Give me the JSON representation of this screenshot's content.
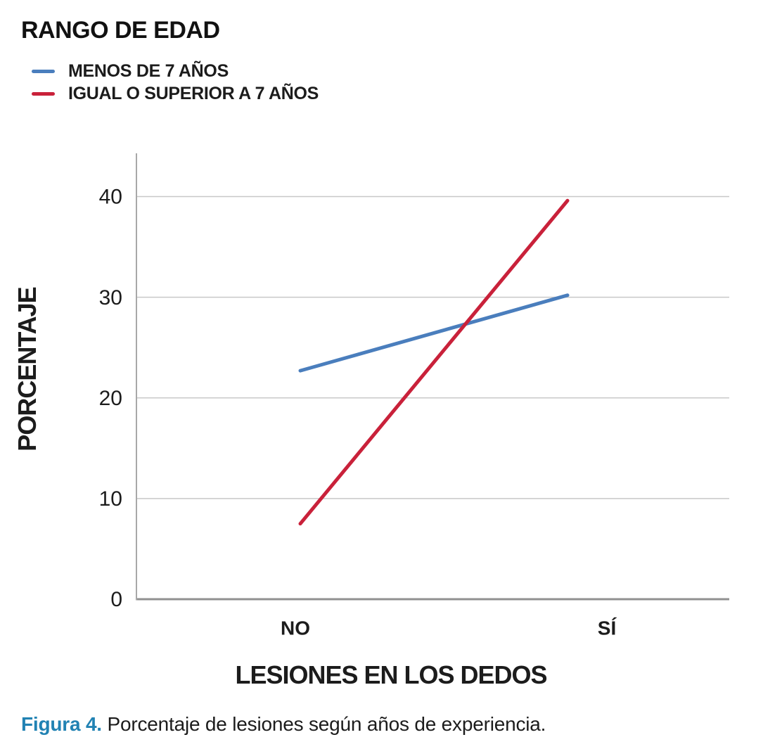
{
  "legend": {
    "title": "RANGO DE EDAD",
    "items": [
      {
        "label": "MENOS DE 7 AÑOS"
      },
      {
        "label": "IGUAL O SUPERIOR A 7 AÑOS"
      }
    ]
  },
  "chart_data": {
    "type": "line",
    "categories": [
      "NO",
      "SÍ"
    ],
    "series": [
      {
        "name": "MENOS DE 7 AÑOS",
        "color": "#4A7EBD",
        "values": [
          22.7,
          30.2
        ]
      },
      {
        "name": "IGUAL O SUPERIOR A 7 AÑOS",
        "color": "#C9213A",
        "values": [
          7.5,
          39.6
        ]
      }
    ],
    "xlabel": "LESIONES EN LOS DEDOS",
    "ylabel": "PORCENTAJE",
    "yticks": [
      0,
      10,
      20,
      30,
      40
    ],
    "ylim": [
      0,
      44.3
    ],
    "grid": true,
    "legend_position": "top-left"
  },
  "caption": {
    "prefix": "Figura 4.",
    "text": "Porcentaje de lesiones según años de experiencia."
  },
  "colors": {
    "grid": "#C8C8C8",
    "y_axis": "#A8A8A8",
    "x_axis": "#909090",
    "text": "#1C1C1C",
    "caption_accent": "#2182B3"
  }
}
